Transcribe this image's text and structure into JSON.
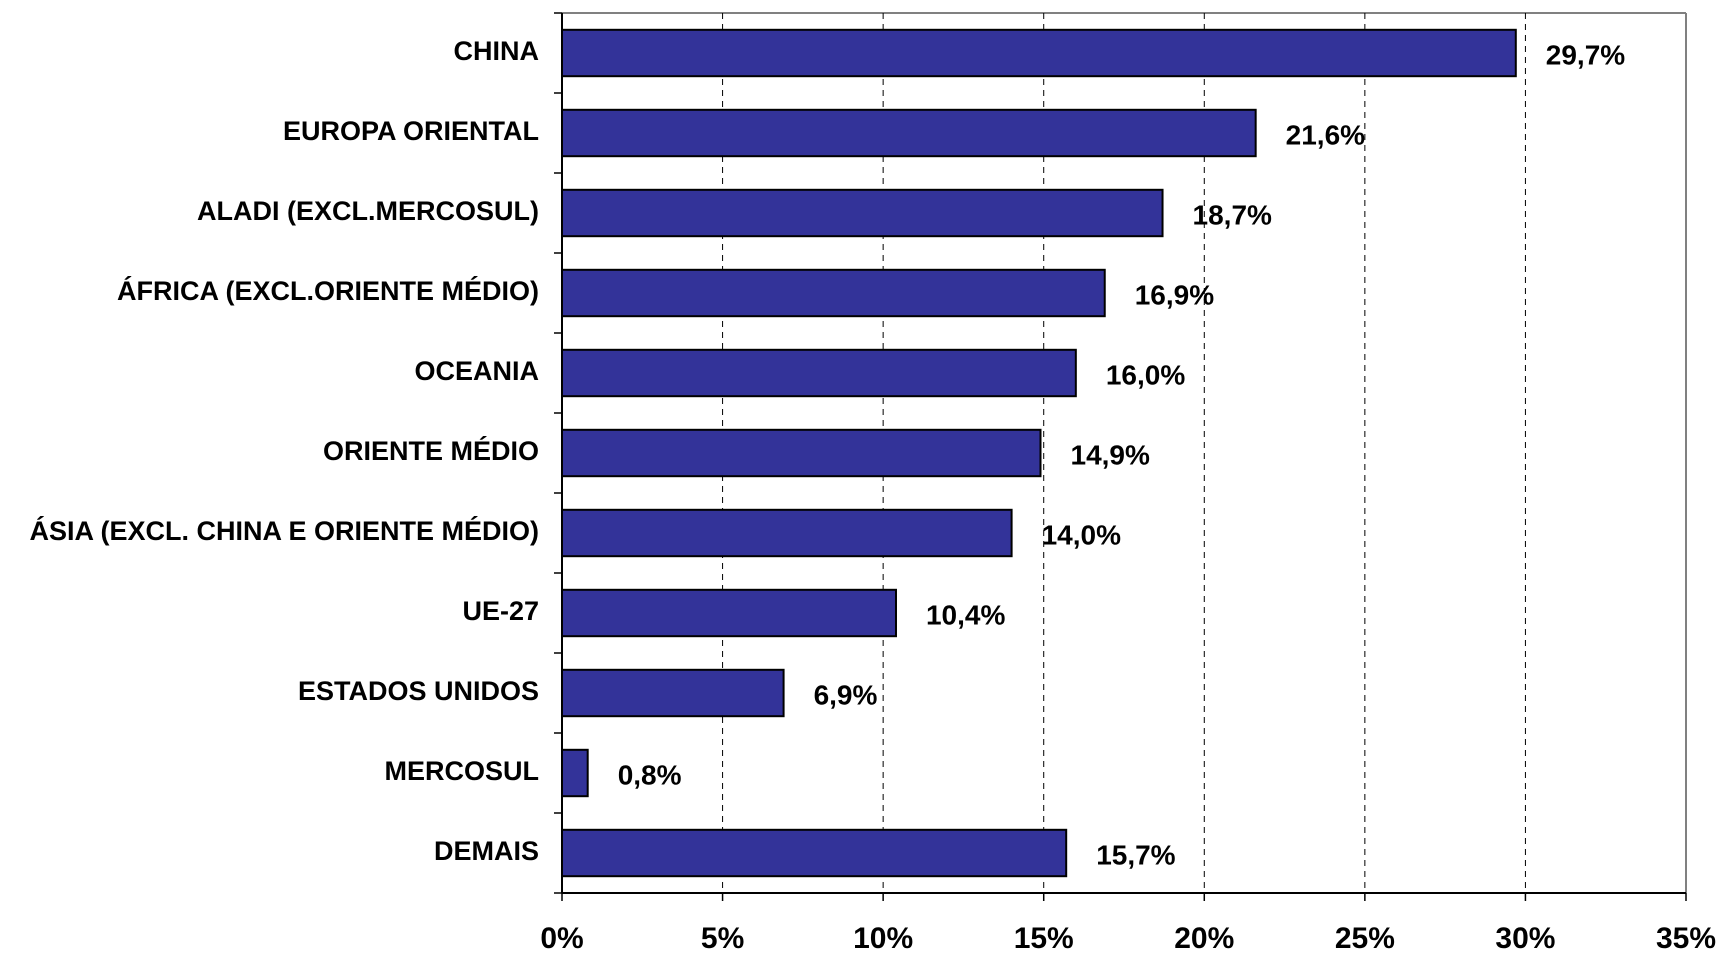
{
  "chart_data": {
    "type": "bar",
    "orientation": "horizontal",
    "categories": [
      "CHINA",
      "EUROPA ORIENTAL",
      "ALADI (EXCL.MERCOSUL)",
      "ÁFRICA (EXCL.ORIENTE MÉDIO)",
      "OCEANIA",
      "ORIENTE MÉDIO",
      "ÁSIA (EXCL. CHINA E ORIENTE MÉDIO)",
      "UE-27",
      "ESTADOS UNIDOS",
      "MERCOSUL",
      "DEMAIS"
    ],
    "values": [
      29.7,
      21.6,
      18.7,
      16.9,
      16.0,
      14.9,
      14.0,
      10.4,
      6.9,
      0.8,
      15.7
    ],
    "value_labels": [
      "29,7%",
      "21,6%",
      "18,7%",
      "16,9%",
      "16,0%",
      "14,9%",
      "14,0%",
      "10,4%",
      "6,9%",
      "0,8%",
      "15,7%"
    ],
    "color": "#333399",
    "xlim": [
      0,
      35
    ],
    "xticks": [
      {
        "value": 0,
        "label": "0%"
      },
      {
        "value": 5,
        "label": "5%"
      },
      {
        "value": 10,
        "label": "10%"
      },
      {
        "value": 15,
        "label": "15%"
      },
      {
        "value": 20,
        "label": "20%"
      },
      {
        "value": 25,
        "label": "25%"
      },
      {
        "value": 30,
        "label": "30%"
      },
      {
        "value": 35,
        "label": "35%"
      }
    ],
    "grid": true
  }
}
